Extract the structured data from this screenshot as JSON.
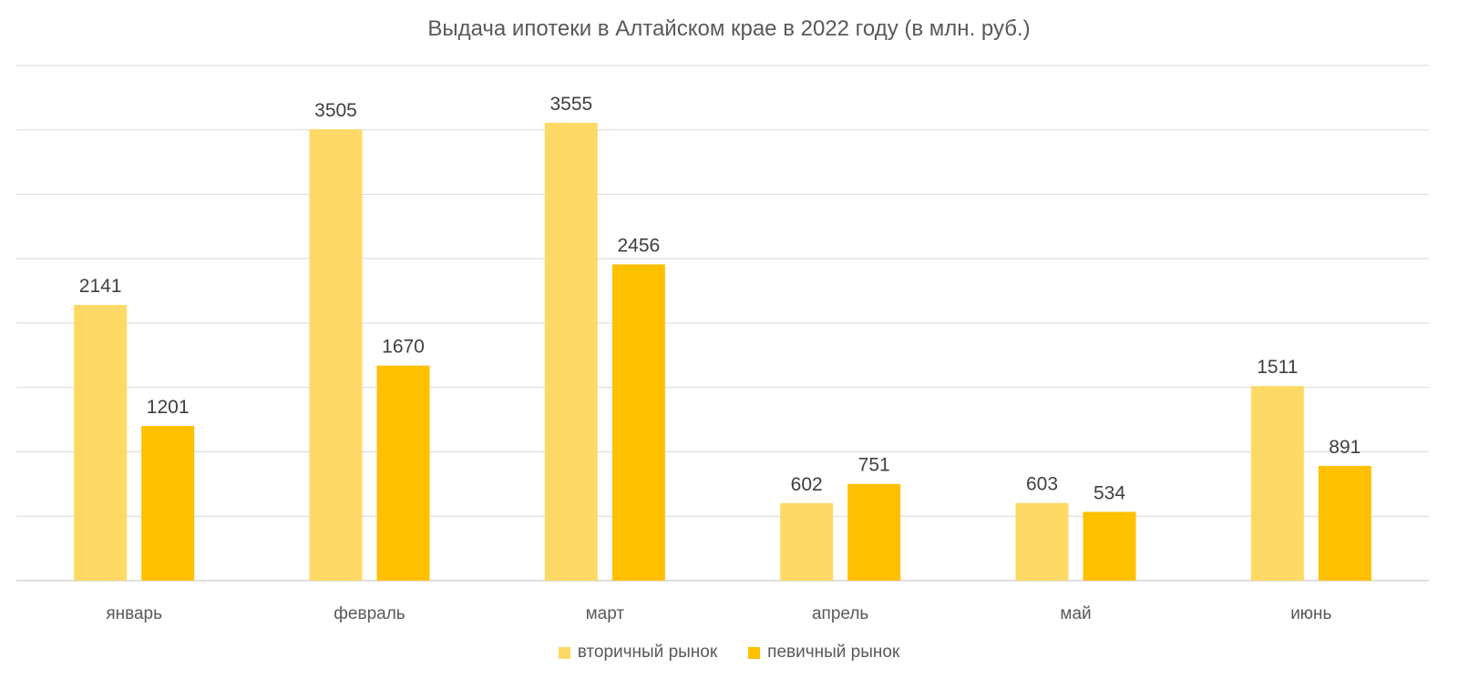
{
  "chart_data": {
    "type": "bar",
    "title": "Выдача ипотеки в Алтайском крае в 2022 году (в млн. руб.)",
    "xlabel": "",
    "ylabel": "",
    "categories": [
      "январь",
      "февраль",
      "март",
      "апрель",
      "май",
      "июнь"
    ],
    "series": [
      {
        "name": "вторичный рынок",
        "color": "#FFD966",
        "values": [
          2141,
          3505,
          3555,
          602,
          603,
          1511
        ]
      },
      {
        "name": "певичный рынок",
        "color": "#FFC000",
        "values": [
          1201,
          1670,
          2456,
          751,
          534,
          891
        ]
      }
    ],
    "ylim": [
      0,
      4000
    ],
    "y_gridline_step": 500,
    "grid": true,
    "show_y_axis_labels": false,
    "data_labels": true,
    "legend_position": "bottom"
  }
}
